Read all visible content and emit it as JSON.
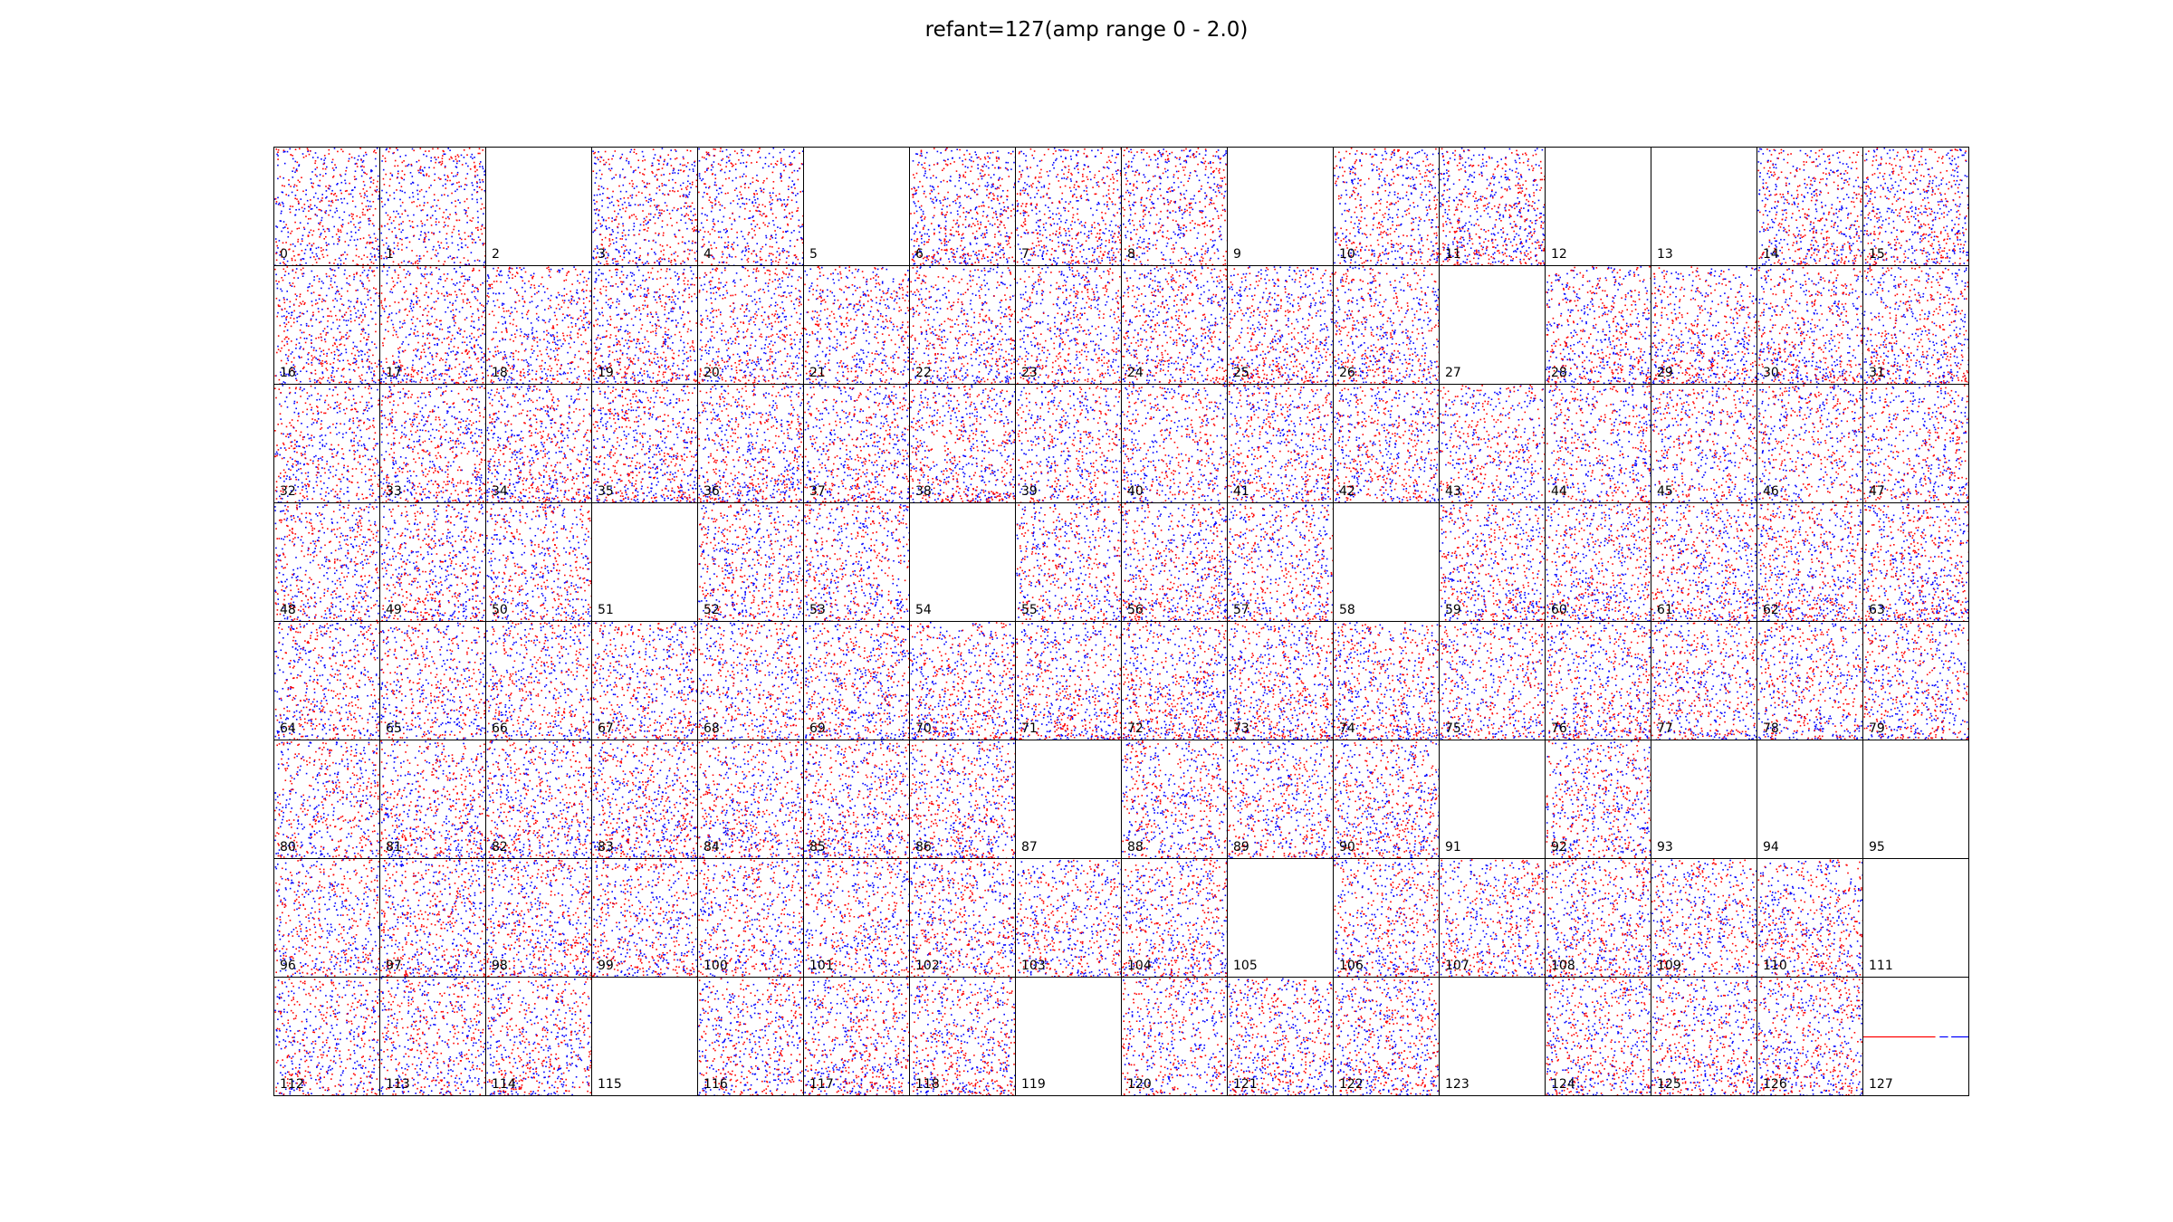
{
  "figure": {
    "title": "refant=127(amp range 0 - 2.0)"
  },
  "chart_data": {
    "type": "scatter",
    "title": "refant=127(amp range 0 - 2.0)",
    "grid": false,
    "layout": "8 rows x 16 columns of panels, one per antenna",
    "series_colors": {
      "series_a": "#0000ff",
      "series_b": "#ff0000"
    },
    "amp_range": [
      0,
      2.0
    ],
    "panels": [
      {
        "antenna": "0",
        "has_data": true,
        "density": 0.55
      },
      {
        "antenna": "1",
        "has_data": true,
        "density": 0.45
      },
      {
        "antenna": "2",
        "has_data": false,
        "density": 0
      },
      {
        "antenna": "3",
        "has_data": true,
        "density": 0.6
      },
      {
        "antenna": "4",
        "has_data": true,
        "density": 0.5
      },
      {
        "antenna": "5",
        "has_data": false,
        "density": 0
      },
      {
        "antenna": "6",
        "has_data": true,
        "density": 0.75
      },
      {
        "antenna": "7",
        "has_data": true,
        "density": 0.7
      },
      {
        "antenna": "8",
        "has_data": true,
        "density": 0.6
      },
      {
        "antenna": "9",
        "has_data": false,
        "density": 0
      },
      {
        "antenna": "10",
        "has_data": true,
        "density": 0.6
      },
      {
        "antenna": "11",
        "has_data": true,
        "density": 0.85
      },
      {
        "antenna": "12",
        "has_data": false,
        "density": 0
      },
      {
        "antenna": "13",
        "has_data": false,
        "density": 0
      },
      {
        "antenna": "14",
        "has_data": true,
        "density": 0.7
      },
      {
        "antenna": "15",
        "has_data": true,
        "density": 0.75
      },
      {
        "antenna": "16",
        "has_data": true,
        "density": 0.65
      },
      {
        "antenna": "17",
        "has_data": true,
        "density": 0.7
      },
      {
        "antenna": "18",
        "has_data": true,
        "density": 0.6
      },
      {
        "antenna": "19",
        "has_data": true,
        "density": 0.75
      },
      {
        "antenna": "20",
        "has_data": true,
        "density": 0.65
      },
      {
        "antenna": "21",
        "has_data": true,
        "density": 0.6
      },
      {
        "antenna": "22",
        "has_data": true,
        "density": 0.65
      },
      {
        "antenna": "23",
        "has_data": true,
        "density": 0.65
      },
      {
        "antenna": "24",
        "has_data": true,
        "density": 0.7
      },
      {
        "antenna": "25",
        "has_data": true,
        "density": 0.75
      },
      {
        "antenna": "26",
        "has_data": true,
        "density": 0.7
      },
      {
        "antenna": "27",
        "has_data": false,
        "density": 0
      },
      {
        "antenna": "28",
        "has_data": true,
        "density": 0.75
      },
      {
        "antenna": "29",
        "has_data": true,
        "density": 0.75
      },
      {
        "antenna": "30",
        "has_data": true,
        "density": 0.7
      },
      {
        "antenna": "31",
        "has_data": true,
        "density": 0.7
      },
      {
        "antenna": "32",
        "has_data": true,
        "density": 0.55
      },
      {
        "antenna": "33",
        "has_data": true,
        "density": 0.75
      },
      {
        "antenna": "34",
        "has_data": true,
        "density": 0.85
      },
      {
        "antenna": "35",
        "has_data": true,
        "density": 0.85
      },
      {
        "antenna": "36",
        "has_data": true,
        "density": 0.85
      },
      {
        "antenna": "37",
        "has_data": true,
        "density": 0.8
      },
      {
        "antenna": "38",
        "has_data": true,
        "density": 0.85
      },
      {
        "antenna": "39",
        "has_data": true,
        "density": 0.55
      },
      {
        "antenna": "40",
        "has_data": true,
        "density": 0.5
      },
      {
        "antenna": "41",
        "has_data": true,
        "density": 0.7
      },
      {
        "antenna": "42",
        "has_data": true,
        "density": 0.7
      },
      {
        "antenna": "43",
        "has_data": true,
        "density": 0.5
      },
      {
        "antenna": "44",
        "has_data": true,
        "density": 0.55
      },
      {
        "antenna": "45",
        "has_data": true,
        "density": 0.5
      },
      {
        "antenna": "46",
        "has_data": true,
        "density": 0.5
      },
      {
        "antenna": "47",
        "has_data": true,
        "density": 0.5
      },
      {
        "antenna": "48",
        "has_data": true,
        "density": 0.65
      },
      {
        "antenna": "49",
        "has_data": true,
        "density": 0.7
      },
      {
        "antenna": "50",
        "has_data": true,
        "density": 0.6
      },
      {
        "antenna": "51",
        "has_data": false,
        "density": 0
      },
      {
        "antenna": "52",
        "has_data": true,
        "density": 0.65
      },
      {
        "antenna": "53",
        "has_data": true,
        "density": 0.6
      },
      {
        "antenna": "54",
        "has_data": false,
        "density": 0
      },
      {
        "antenna": "55",
        "has_data": true,
        "density": 0.55
      },
      {
        "antenna": "56",
        "has_data": true,
        "density": 0.75
      },
      {
        "antenna": "57",
        "has_data": true,
        "density": 0.6
      },
      {
        "antenna": "58",
        "has_data": false,
        "density": 0
      },
      {
        "antenna": "59",
        "has_data": true,
        "density": 0.7
      },
      {
        "antenna": "60",
        "has_data": true,
        "density": 0.75
      },
      {
        "antenna": "61",
        "has_data": true,
        "density": 0.75
      },
      {
        "antenna": "62",
        "has_data": true,
        "density": 0.8
      },
      {
        "antenna": "63",
        "has_data": true,
        "density": 0.8
      },
      {
        "antenna": "64",
        "has_data": true,
        "density": 0.6
      },
      {
        "antenna": "65",
        "has_data": true,
        "density": 0.55
      },
      {
        "antenna": "66",
        "has_data": true,
        "density": 0.6
      },
      {
        "antenna": "67",
        "has_data": true,
        "density": 0.65
      },
      {
        "antenna": "68",
        "has_data": true,
        "density": 0.6
      },
      {
        "antenna": "69",
        "has_data": true,
        "density": 0.8
      },
      {
        "antenna": "70",
        "has_data": true,
        "density": 0.85
      },
      {
        "antenna": "71",
        "has_data": true,
        "density": 0.8
      },
      {
        "antenna": "72",
        "has_data": true,
        "density": 0.85
      },
      {
        "antenna": "73",
        "has_data": true,
        "density": 0.85
      },
      {
        "antenna": "74",
        "has_data": true,
        "density": 0.85
      },
      {
        "antenna": "75",
        "has_data": true,
        "density": 0.6
      },
      {
        "antenna": "76",
        "has_data": true,
        "density": 0.75
      },
      {
        "antenna": "77",
        "has_data": true,
        "density": 0.65
      },
      {
        "antenna": "78",
        "has_data": true,
        "density": 0.65
      },
      {
        "antenna": "79",
        "has_data": true,
        "density": 0.65
      },
      {
        "antenna": "80",
        "has_data": true,
        "density": 0.6
      },
      {
        "antenna": "81",
        "has_data": true,
        "density": 0.75
      },
      {
        "antenna": "82",
        "has_data": true,
        "density": 0.7
      },
      {
        "antenna": "83",
        "has_data": true,
        "density": 0.85
      },
      {
        "antenna": "84",
        "has_data": true,
        "density": 0.65
      },
      {
        "antenna": "85",
        "has_data": true,
        "density": 0.75
      },
      {
        "antenna": "86",
        "has_data": true,
        "density": 0.75
      },
      {
        "antenna": "87",
        "has_data": false,
        "density": 0
      },
      {
        "antenna": "88",
        "has_data": true,
        "density": 0.6
      },
      {
        "antenna": "89",
        "has_data": true,
        "density": 0.6
      },
      {
        "antenna": "90",
        "has_data": true,
        "density": 0.75
      },
      {
        "antenna": "91",
        "has_data": false,
        "density": 0
      },
      {
        "antenna": "92",
        "has_data": true,
        "density": 0.65
      },
      {
        "antenna": "93",
        "has_data": false,
        "density": 0
      },
      {
        "antenna": "94",
        "has_data": false,
        "density": 0
      },
      {
        "antenna": "95",
        "has_data": false,
        "density": 0
      },
      {
        "antenna": "96",
        "has_data": true,
        "density": 0.55
      },
      {
        "antenna": "97",
        "has_data": true,
        "density": 0.75
      },
      {
        "antenna": "98",
        "has_data": true,
        "density": 0.8
      },
      {
        "antenna": "99",
        "has_data": true,
        "density": 0.65
      },
      {
        "antenna": "100",
        "has_data": true,
        "density": 0.6
      },
      {
        "antenna": "101",
        "has_data": true,
        "density": 0.55
      },
      {
        "antenna": "102",
        "has_data": true,
        "density": 0.7
      },
      {
        "antenna": "103",
        "has_data": true,
        "density": 0.65
      },
      {
        "antenna": "104",
        "has_data": true,
        "density": 0.7
      },
      {
        "antenna": "105",
        "has_data": false,
        "density": 0
      },
      {
        "antenna": "106",
        "has_data": true,
        "density": 0.65
      },
      {
        "antenna": "107",
        "has_data": true,
        "density": 0.6
      },
      {
        "antenna": "108",
        "has_data": true,
        "density": 0.75
      },
      {
        "antenna": "109",
        "has_data": true,
        "density": 0.6
      },
      {
        "antenna": "110",
        "has_data": true,
        "density": 0.7
      },
      {
        "antenna": "111",
        "has_data": false,
        "density": 0
      },
      {
        "antenna": "112",
        "has_data": true,
        "density": 0.6
      },
      {
        "antenna": "113",
        "has_data": true,
        "density": 0.6
      },
      {
        "antenna": "114",
        "has_data": true,
        "density": 0.65
      },
      {
        "antenna": "115",
        "has_data": false,
        "density": 0
      },
      {
        "antenna": "116",
        "has_data": true,
        "density": 0.6
      },
      {
        "antenna": "117",
        "has_data": true,
        "density": 0.75
      },
      {
        "antenna": "118",
        "has_data": true,
        "density": 0.75
      },
      {
        "antenna": "119",
        "has_data": false,
        "density": 0
      },
      {
        "antenna": "120",
        "has_data": true,
        "density": 0.5
      },
      {
        "antenna": "121",
        "has_data": true,
        "density": 0.75
      },
      {
        "antenna": "122",
        "has_data": true,
        "density": 0.75
      },
      {
        "antenna": "123",
        "has_data": false,
        "density": 0
      },
      {
        "antenna": "124",
        "has_data": true,
        "density": 0.65
      },
      {
        "antenna": "125",
        "has_data": true,
        "density": 0.65
      },
      {
        "antenna": "126",
        "has_data": true,
        "density": 0.75
      },
      {
        "antenna": "127",
        "has_data": true,
        "density": 0,
        "reference": true,
        "amp_level": 1.0
      }
    ]
  }
}
